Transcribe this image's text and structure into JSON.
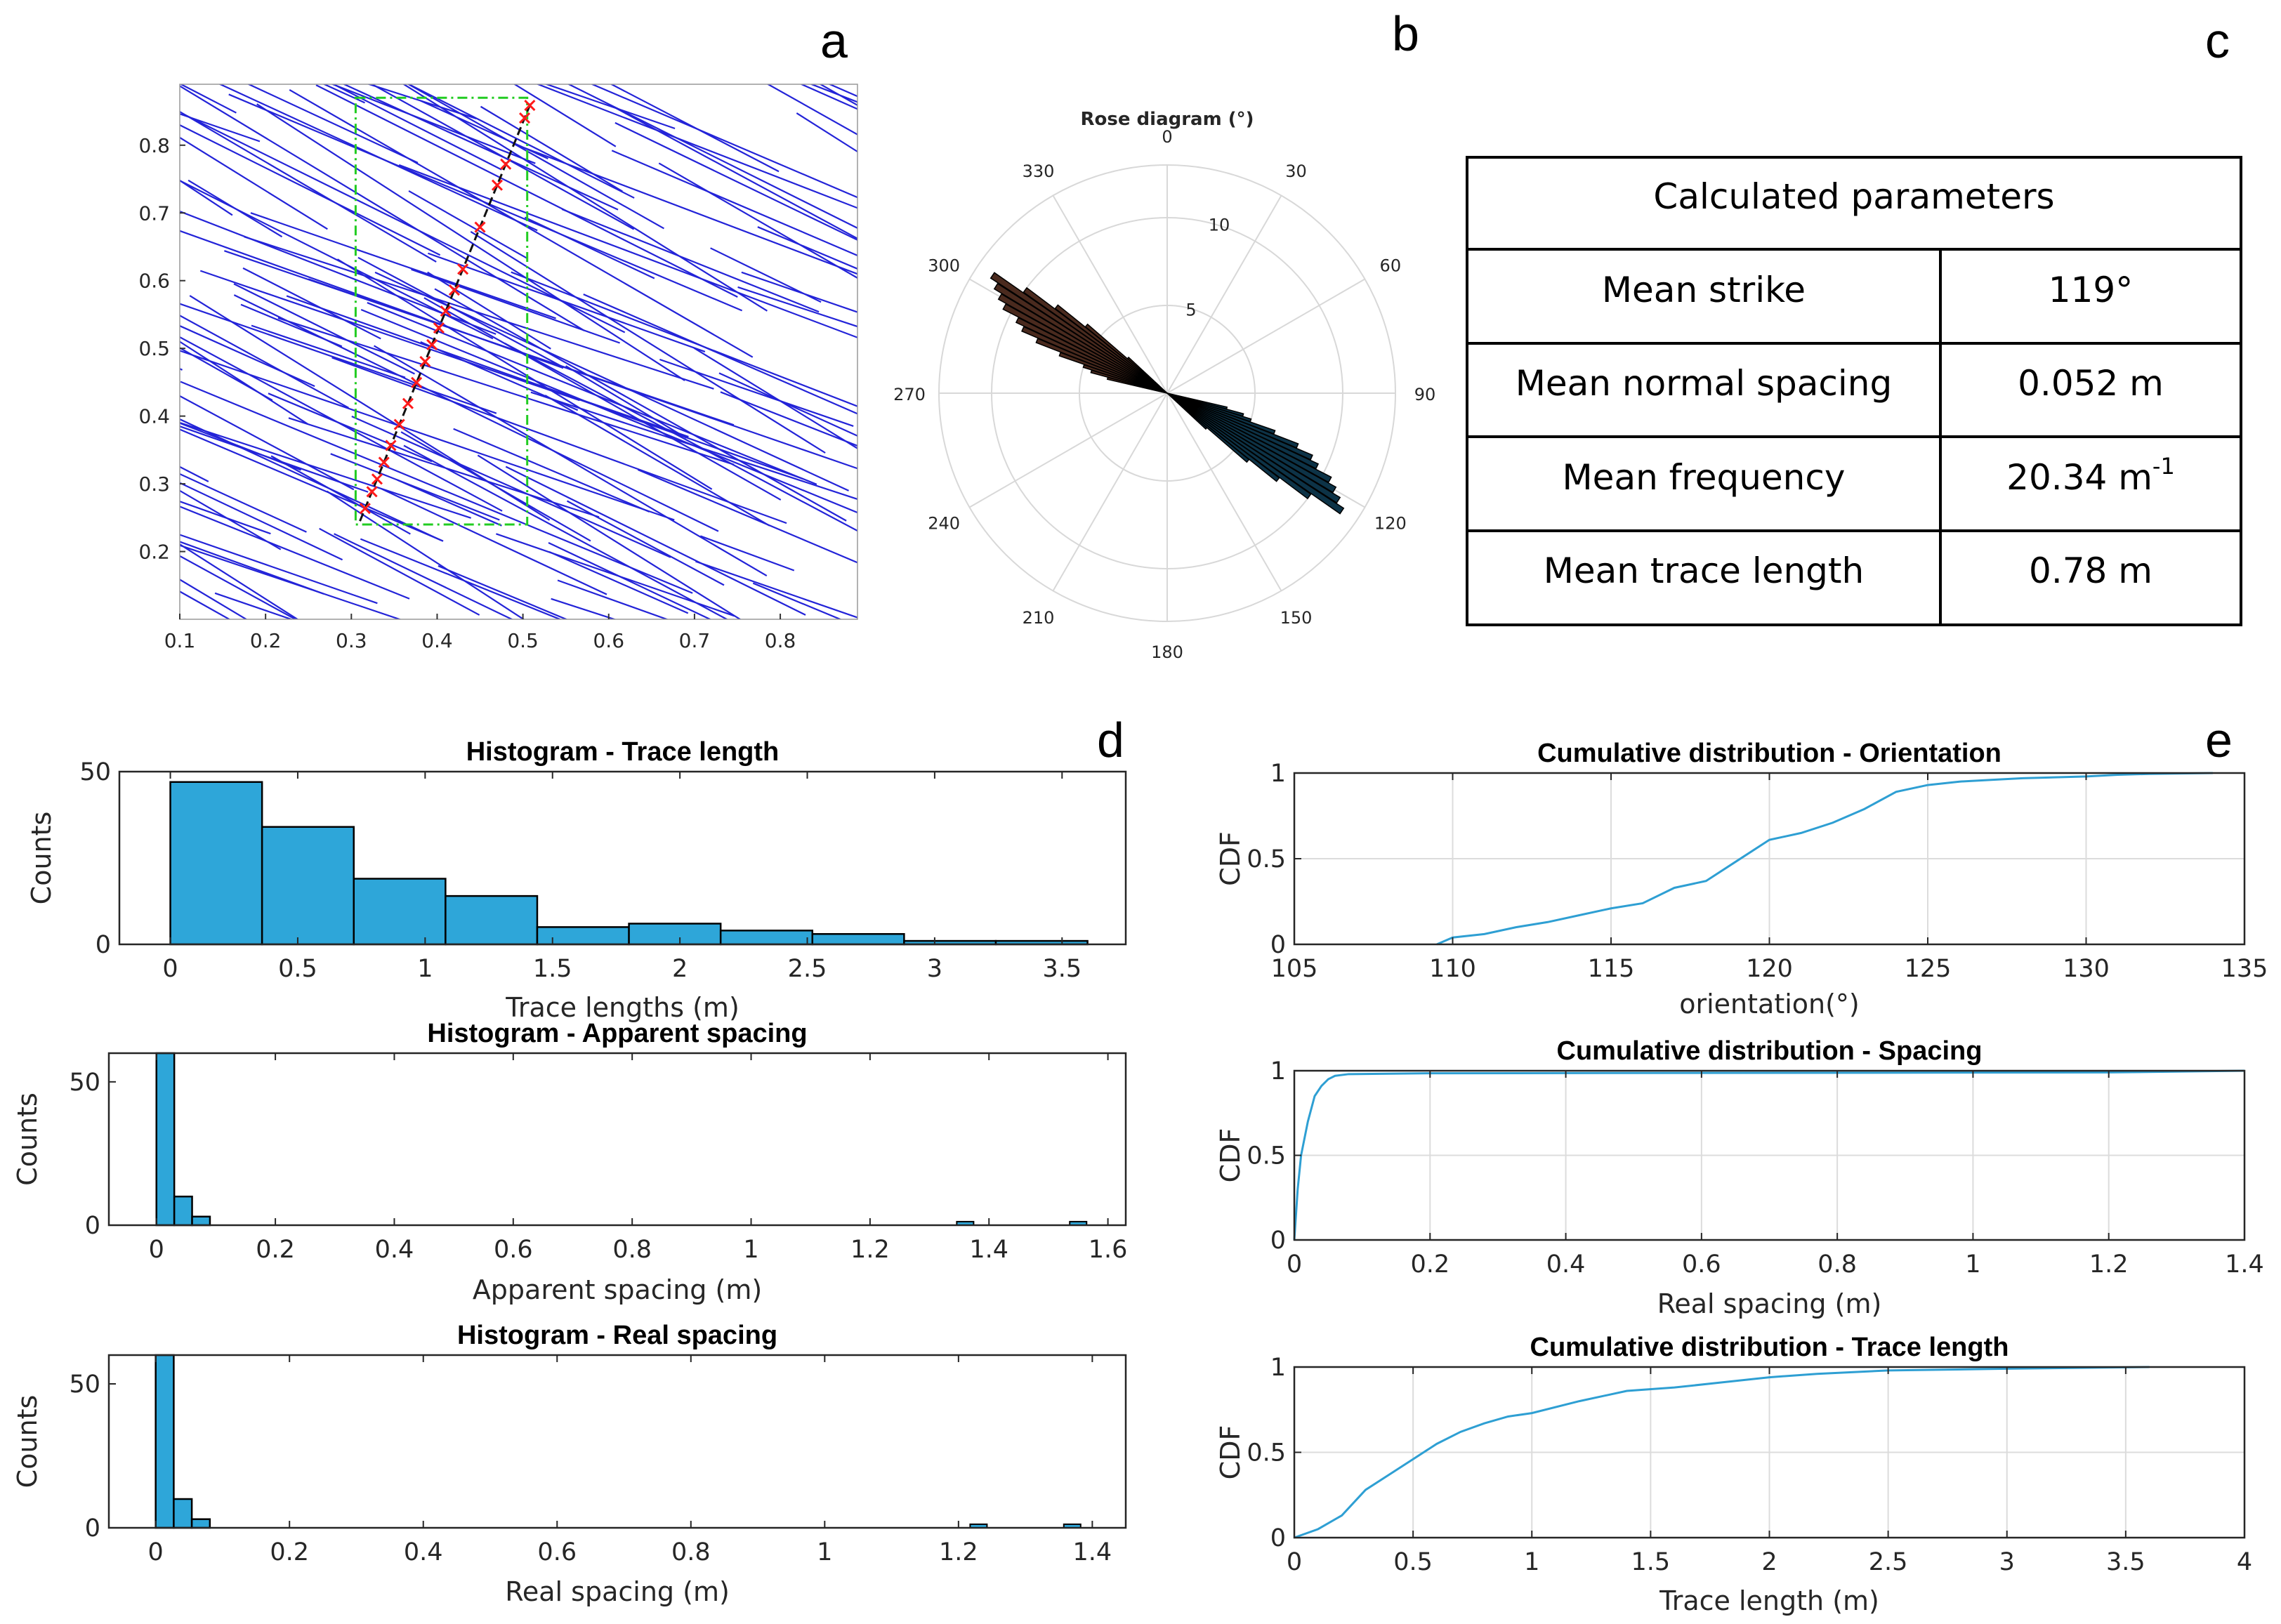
{
  "panel_labels": [
    "a",
    "b",
    "c",
    "d",
    "e"
  ],
  "colors": {
    "fracture": "#2323d8",
    "scanline": "#c2185b",
    "marker": "#ff1a1a",
    "window": "#22cc22",
    "bar": "#2ea6d9",
    "cdf": "#2e9fd3",
    "rose_pos": "#0d3347",
    "rose_neg": "#4a2a1e"
  },
  "chart_data": [
    {
      "id": "a",
      "type": "scatter",
      "title": "",
      "xlim": [
        0.1,
        0.89
      ],
      "ylim": [
        0.1,
        0.89
      ],
      "xticks": [
        0.1,
        0.2,
        0.3,
        0.4,
        0.5,
        0.6,
        0.7,
        0.8
      ],
      "yticks": [
        0.2,
        0.3,
        0.4,
        0.5,
        0.6,
        0.7,
        0.8
      ],
      "window": {
        "x": [
          0.305,
          0.505
        ],
        "y": [
          0.24,
          0.87
        ]
      },
      "scanline": {
        "from": [
          0.31,
          0.245
        ],
        "to": [
          0.51,
          0.865
        ]
      },
      "intersections_t": [
        0.03,
        0.07,
        0.1,
        0.14,
        0.18,
        0.23,
        0.28,
        0.33,
        0.38,
        0.42,
        0.46,
        0.5,
        0.55,
        0.6,
        0.7,
        0.8,
        0.85,
        0.96,
        0.99
      ]
    },
    {
      "id": "b",
      "type": "rose",
      "title": "Rose diagram (°)",
      "angle_labels": [
        "0",
        "30",
        "60",
        "90",
        "120",
        "150",
        "180",
        "210",
        "240",
        "270",
        "300",
        "330"
      ],
      "radial_ticks": [
        5,
        10
      ],
      "rmax": 13,
      "bins": [
        {
          "angle": 104,
          "value": 3.5
        },
        {
          "angle": 106,
          "value": 4.5
        },
        {
          "angle": 108,
          "value": 5
        },
        {
          "angle": 110,
          "value": 6.5
        },
        {
          "angle": 112,
          "value": 8
        },
        {
          "angle": 114,
          "value": 9
        },
        {
          "angle": 116,
          "value": 9.5
        },
        {
          "angle": 118,
          "value": 10.5
        },
        {
          "angle": 120,
          "value": 11
        },
        {
          "angle": 122,
          "value": 11.5
        },
        {
          "angle": 124,
          "value": 12
        },
        {
          "angle": 126,
          "value": 10
        },
        {
          "angle": 128,
          "value": 8
        },
        {
          "angle": 130,
          "value": 6
        },
        {
          "angle": 132,
          "value": 3
        }
      ]
    },
    {
      "id": "d1",
      "type": "bar",
      "title": "Histogram - Trace length",
      "xlabel": "Trace lengths (m)",
      "ylabel": "Counts",
      "xlim": [
        -0.2,
        3.75
      ],
      "ylim": [
        0,
        50
      ],
      "xticks": [
        "0",
        "0.5",
        "1",
        "1.5",
        "2",
        "2.5",
        "3",
        "3.5"
      ],
      "yticks": [
        "0",
        "50"
      ],
      "bin_edges": [
        0,
        0.36,
        0.72,
        1.08,
        1.44,
        1.8,
        2.16,
        2.52,
        2.88,
        3.24,
        3.6
      ],
      "values": [
        47,
        34,
        19,
        14,
        5,
        6,
        4,
        3,
        1,
        1
      ]
    },
    {
      "id": "d2",
      "type": "bar",
      "title": "Histogram - Apparent spacing",
      "xlabel": "Apparent spacing (m)",
      "ylabel": "Counts",
      "xlim": [
        -0.08,
        1.63
      ],
      "ylim": [
        0,
        60
      ],
      "xticks": [
        "0",
        "0.2",
        "0.4",
        "0.6",
        "0.8",
        "1",
        "1.2",
        "1.4",
        "1.6"
      ],
      "yticks": [
        "0",
        "50"
      ],
      "bin_edges": [
        0,
        0.03,
        0.06,
        0.09
      ],
      "values": [
        60,
        10,
        3
      ],
      "outliers": [
        {
          "x": 1.36,
          "value": 1
        },
        {
          "x": 1.55,
          "value": 1
        }
      ]
    },
    {
      "id": "d3",
      "type": "bar",
      "title": "Histogram - Real spacing",
      "xlabel": "Real spacing (m)",
      "ylabel": "Counts",
      "xlim": [
        -0.07,
        1.45
      ],
      "ylim": [
        0,
        60
      ],
      "xticks": [
        "0",
        "0.2",
        "0.4",
        "0.6",
        "0.8",
        "1",
        "1.2",
        "1.4"
      ],
      "yticks": [
        "0",
        "50"
      ],
      "bin_edges": [
        0,
        0.027,
        0.054,
        0.081
      ],
      "values": [
        60,
        10,
        3
      ],
      "outliers": [
        {
          "x": 1.23,
          "value": 1
        },
        {
          "x": 1.37,
          "value": 1
        }
      ]
    },
    {
      "id": "e1",
      "type": "line",
      "title": "Cumulative distribution - Orientation",
      "xlabel": "orientation(°)",
      "ylabel": "CDF",
      "xlim": [
        105,
        135
      ],
      "ylim": [
        0,
        1
      ],
      "xticks": [
        "105",
        "110",
        "115",
        "120",
        "125",
        "130",
        "135"
      ],
      "yticks": [
        "0",
        "0.5",
        "1"
      ],
      "x": [
        109.5,
        110,
        111,
        112,
        113,
        114,
        115,
        116,
        117,
        118,
        119,
        120,
        121,
        122,
        123,
        124,
        125,
        126,
        127,
        128,
        130,
        131,
        132,
        134
      ],
      "y": [
        0,
        0.04,
        0.06,
        0.1,
        0.13,
        0.17,
        0.21,
        0.24,
        0.33,
        0.37,
        0.49,
        0.61,
        0.65,
        0.71,
        0.79,
        0.89,
        0.93,
        0.95,
        0.96,
        0.97,
        0.98,
        0.99,
        0.995,
        1
      ]
    },
    {
      "id": "e2",
      "type": "line",
      "title": "Cumulative distribution - Spacing",
      "xlabel": "Real spacing (m)",
      "ylabel": "CDF",
      "xlim": [
        0,
        1.4
      ],
      "ylim": [
        0,
        1
      ],
      "xticks": [
        "0",
        "0.2",
        "0.4",
        "0.6",
        "0.8",
        "1",
        "1.2",
        "1.4"
      ],
      "yticks": [
        "0",
        "0.5",
        "1"
      ],
      "x": [
        0,
        0.005,
        0.01,
        0.02,
        0.03,
        0.04,
        0.05,
        0.06,
        0.08,
        0.2,
        1.2,
        1.4
      ],
      "y": [
        0,
        0.3,
        0.5,
        0.7,
        0.85,
        0.91,
        0.95,
        0.97,
        0.98,
        0.985,
        0.99,
        1
      ]
    },
    {
      "id": "e3",
      "type": "line",
      "title": "Cumulative distribution - Trace length",
      "xlabel": "Trace length (m)",
      "ylabel": "CDF",
      "xlim": [
        0,
        4
      ],
      "ylim": [
        0,
        1
      ],
      "xticks": [
        "0",
        "0.5",
        "1",
        "1.5",
        "2",
        "2.5",
        "3",
        "3.5",
        "4"
      ],
      "yticks": [
        "0",
        "0.5",
        "1"
      ],
      "x": [
        0,
        0.1,
        0.2,
        0.3,
        0.4,
        0.5,
        0.6,
        0.7,
        0.8,
        0.9,
        1.0,
        1.2,
        1.4,
        1.6,
        1.8,
        2.0,
        2.2,
        2.5,
        3.0,
        3.6
      ],
      "y": [
        0,
        0.05,
        0.13,
        0.28,
        0.37,
        0.46,
        0.55,
        0.62,
        0.67,
        0.71,
        0.73,
        0.8,
        0.86,
        0.88,
        0.91,
        0.94,
        0.96,
        0.98,
        0.99,
        1
      ]
    }
  ],
  "parameters_table": {
    "header": "Calculated parameters",
    "rows": [
      {
        "label": "Mean strike",
        "value": "119°"
      },
      {
        "label": "Mean normal spacing",
        "value": "0.052 m"
      },
      {
        "label": "Mean frequency",
        "value": "20.34 m",
        "sup": "-1"
      },
      {
        "label": "Mean trace length",
        "value": "0.78 m"
      }
    ]
  }
}
